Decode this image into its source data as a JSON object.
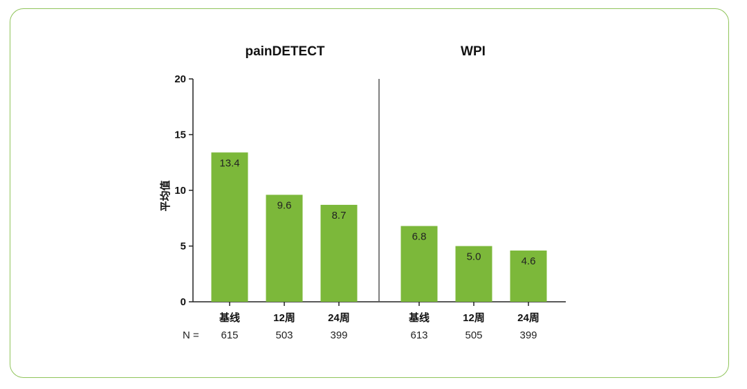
{
  "chart_data": {
    "type": "bar",
    "ylabel": "平均值",
    "ylim": [
      0,
      20
    ],
    "yticks": [
      0,
      5,
      10,
      15,
      20
    ],
    "n_label": "N =",
    "colors": {
      "bar": "#7cb83a",
      "divider": "#555555"
    },
    "panels": [
      {
        "title": "painDETECT",
        "categories": [
          "基线",
          "12周",
          "24周"
        ],
        "values": [
          13.4,
          9.6,
          8.7
        ],
        "value_labels": [
          "13.4",
          "9.6",
          "8.7"
        ],
        "n": [
          "615",
          "503",
          "399"
        ]
      },
      {
        "title": "WPI",
        "categories": [
          "基线",
          "12周",
          "24周"
        ],
        "values": [
          6.8,
          5.0,
          4.6
        ],
        "value_labels": [
          "6.8",
          "5.0",
          "4.6"
        ],
        "n": [
          "613",
          "505",
          "399"
        ]
      }
    ]
  }
}
